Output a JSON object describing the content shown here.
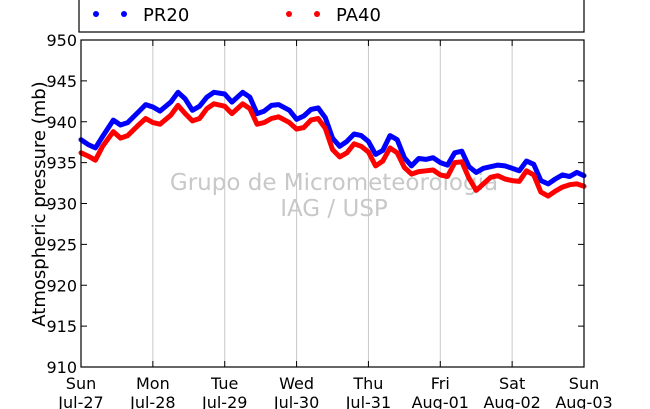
{
  "chart_data": {
    "type": "line",
    "title": "",
    "xlabel": "",
    "ylabel": "Atmospheric pressure (mb)",
    "ylim": [
      910,
      950
    ],
    "yticks": [
      "910",
      "915",
      "920",
      "925",
      "930",
      "935",
      "940",
      "945",
      "950"
    ],
    "xlim": [
      0,
      7
    ],
    "xticks": [
      {
        "day": "Sun",
        "date": "Jul-27"
      },
      {
        "day": "Mon",
        "date": "Jul-28"
      },
      {
        "day": "Tue",
        "date": "Jul-29"
      },
      {
        "day": "Wed",
        "date": "Jul-30"
      },
      {
        "day": "Thu",
        "date": "Jul-31"
      },
      {
        "day": "Fri",
        "date": "Aug-01"
      },
      {
        "day": "Sat",
        "date": "Aug-02"
      },
      {
        "day": "Sun",
        "date": "Aug-03"
      }
    ],
    "grid": "vertical",
    "legend": {
      "placement": "top"
    },
    "watermark": [
      "Grupo de Micrometeorologia",
      "IAG / USP"
    ],
    "series": [
      {
        "name": "PR20",
        "color": "#0000ff",
        "x": [
          0,
          0.1,
          0.2,
          0.3,
          0.45,
          0.55,
          0.65,
          0.8,
          0.9,
          1.0,
          1.1,
          1.25,
          1.35,
          1.45,
          1.55,
          1.65,
          1.75,
          1.85,
          2.0,
          2.1,
          2.25,
          2.35,
          2.45,
          2.55,
          2.65,
          2.75,
          2.9,
          3.0,
          3.1,
          3.2,
          3.3,
          3.4,
          3.5,
          3.6,
          3.7,
          3.8,
          3.9,
          4.0,
          4.1,
          4.2,
          4.3,
          4.4,
          4.5,
          4.6,
          4.7,
          4.8,
          4.9,
          5.0,
          5.1,
          5.2,
          5.3,
          5.4,
          5.5,
          5.6,
          5.7,
          5.8,
          5.9,
          6.0,
          6.1,
          6.2,
          6.3,
          6.4,
          6.5,
          6.6,
          6.7,
          6.8,
          6.9,
          7.0
        ],
        "y": [
          937.8,
          937.2,
          936.8,
          938.2,
          940.2,
          939.6,
          939.9,
          941.2,
          942.1,
          941.8,
          941.3,
          942.4,
          943.6,
          942.8,
          941.4,
          941.9,
          943.0,
          943.6,
          943.4,
          942.4,
          943.6,
          943.0,
          941.0,
          941.3,
          942.0,
          942.1,
          941.4,
          940.3,
          940.7,
          941.5,
          941.7,
          940.5,
          938.0,
          937.0,
          937.6,
          938.5,
          938.3,
          937.6,
          936.0,
          936.5,
          938.3,
          937.8,
          935.6,
          934.6,
          935.5,
          935.4,
          935.6,
          935.0,
          934.7,
          936.2,
          936.4,
          934.5,
          933.8,
          934.3,
          934.5,
          934.7,
          934.6,
          934.3,
          934.0,
          935.2,
          934.8,
          932.8,
          932.4,
          933.0,
          933.5,
          933.3,
          933.8,
          933.4
        ]
      },
      {
        "name": "PA40",
        "color": "#ff0000",
        "x": [
          0,
          0.1,
          0.2,
          0.3,
          0.45,
          0.55,
          0.65,
          0.8,
          0.9,
          1.0,
          1.1,
          1.25,
          1.35,
          1.45,
          1.55,
          1.65,
          1.75,
          1.85,
          2.0,
          2.1,
          2.25,
          2.35,
          2.45,
          2.55,
          2.65,
          2.75,
          2.9,
          3.0,
          3.1,
          3.2,
          3.3,
          3.4,
          3.5,
          3.6,
          3.7,
          3.8,
          3.9,
          4.0,
          4.1,
          4.2,
          4.3,
          4.4,
          4.5,
          4.6,
          4.7,
          4.8,
          4.9,
          5.0,
          5.1,
          5.2,
          5.3,
          5.4,
          5.5,
          5.6,
          5.7,
          5.8,
          5.9,
          6.0,
          6.1,
          6.2,
          6.3,
          6.4,
          6.5,
          6.6,
          6.7,
          6.8,
          6.9,
          7.0
        ],
        "y": [
          936.2,
          935.8,
          935.3,
          937.0,
          938.8,
          938.0,
          938.3,
          939.6,
          940.4,
          939.9,
          939.7,
          940.8,
          942.0,
          941.0,
          940.1,
          940.4,
          941.6,
          942.2,
          941.9,
          941.0,
          942.2,
          941.6,
          939.7,
          939.9,
          940.4,
          940.6,
          939.9,
          939.1,
          939.3,
          940.2,
          940.4,
          939.2,
          936.6,
          935.7,
          936.2,
          937.3,
          937.0,
          936.3,
          934.6,
          935.2,
          936.8,
          936.2,
          934.4,
          933.6,
          933.9,
          934.0,
          934.1,
          933.5,
          933.3,
          935.0,
          935.1,
          933.1,
          931.6,
          932.4,
          933.2,
          933.4,
          933.0,
          932.8,
          932.7,
          934.0,
          933.5,
          931.4,
          930.9,
          931.5,
          932.0,
          932.3,
          932.4,
          932.1
        ]
      }
    ]
  }
}
